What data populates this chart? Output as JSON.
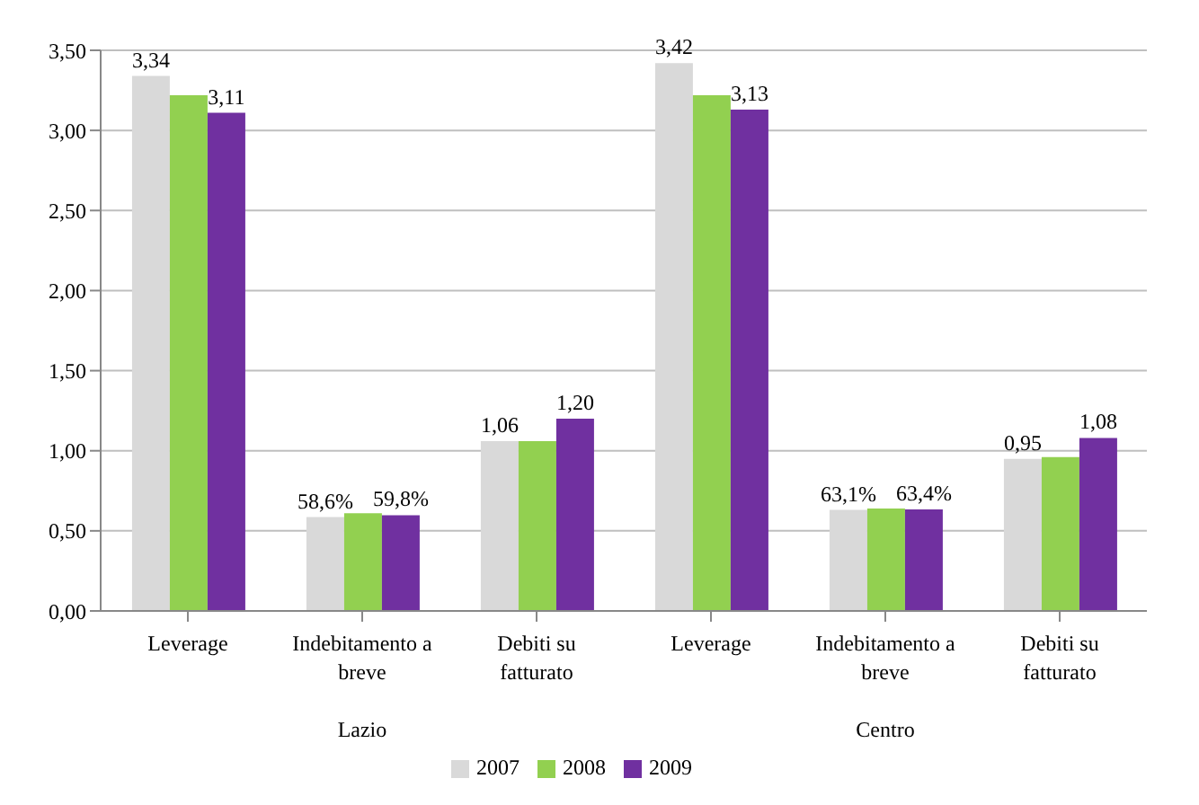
{
  "chart_data": {
    "type": "bar",
    "categories": [
      "Leverage",
      "Indebitamento a breve",
      "Debiti su fatturato",
      "Leverage",
      "Indebitamento a breve",
      "Debiti su fatturato"
    ],
    "annotations": [
      "Lazio",
      "Centro"
    ],
    "series": [
      {
        "name": "2007",
        "color": "#d9d9d9",
        "values": [
          3.34,
          0.586,
          1.06,
          3.42,
          0.631,
          0.95
        ],
        "value_labels": [
          "3,34",
          "58,6%",
          "1,06",
          "3,42",
          "63,1%",
          "0,95"
        ]
      },
      {
        "name": "2008",
        "color": "#92d050",
        "values": [
          3.22,
          0.61,
          1.06,
          3.22,
          0.64,
          0.96
        ]
      },
      {
        "name": "2009",
        "color": "#7030a0",
        "values": [
          3.11,
          0.598,
          1.2,
          3.13,
          0.634,
          1.08
        ],
        "value_labels": [
          "3,11",
          "59,8%",
          "1,20",
          "3,13",
          "63,4%",
          "1,08"
        ]
      }
    ],
    "ylim": [
      0,
      3.5
    ],
    "yticks": [
      {
        "value": 0,
        "label": "0,00"
      },
      {
        "value": 0.5,
        "label": "0,50"
      },
      {
        "value": 1,
        "label": "1,00"
      },
      {
        "value": 1.5,
        "label": "1,50"
      },
      {
        "value": 2,
        "label": "2,00"
      },
      {
        "value": 2.5,
        "label": "2,50"
      },
      {
        "value": 3,
        "label": "3,00"
      },
      {
        "value": 3.5,
        "label": "3,50"
      }
    ],
    "grid": "y",
    "legend": "bottom"
  }
}
